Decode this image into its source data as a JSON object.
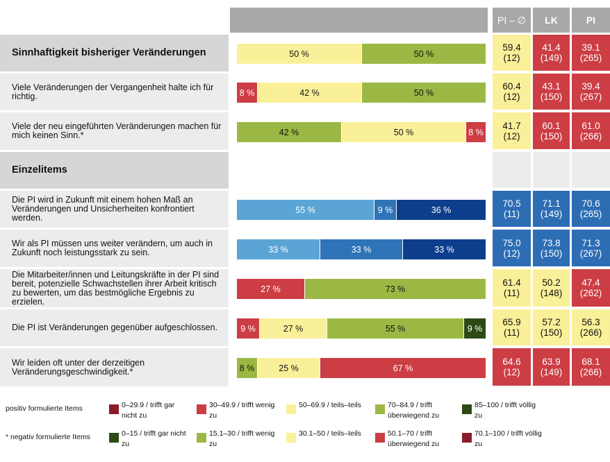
{
  "header": {
    "col_pi_avg": "PI – ∅",
    "col_lk": "LK",
    "col_pi": "PI"
  },
  "colors": {
    "header_gray": "#a8a8a8",
    "row_light": "#ececec",
    "row_section": "#d6d6d6",
    "pos_0": "#8b1a2b",
    "pos_1": "#cc3d44",
    "pos_2": "#fbf09a",
    "pos_3": "#9cb844",
    "pos_4": "#2d4a14",
    "neg_0": "#2d4a14",
    "neg_1": "#9cb844",
    "neg_2": "#fbf09a",
    "neg_3": "#cc3d44",
    "neg_4": "#8b1a2b",
    "blue_0": "#5ba5d6",
    "blue_1": "#2f74b8",
    "blue_2": "#0d3e8c",
    "score_yellow": "#fbf09a",
    "score_red": "#cc3d44",
    "score_blue": "#2d6db4",
    "score_empty": "#ececec"
  },
  "chart_data": {
    "type": "bar",
    "stacked": true,
    "orientation": "horizontal",
    "rows": [
      {
        "label": "Sinnhaftigkeit bisheriger Veränderungen",
        "section": true,
        "segments": [
          {
            "value": 50,
            "label": "50 %",
            "color": "#fbf09a"
          },
          {
            "value": 50,
            "label": "50 %",
            "color": "#9cb844"
          }
        ],
        "scores": [
          {
            "value": "59.4",
            "n": "(12)",
            "color": "#fbf09a"
          },
          {
            "value": "41.4",
            "n": "(149)",
            "color": "#cc3d44"
          },
          {
            "value": "39.1",
            "n": "(265)",
            "color": "#cc3d44"
          }
        ]
      },
      {
        "label": "Viele Veränderungen der Vergangenheit halte ich für richtig.",
        "section": false,
        "segments": [
          {
            "value": 8,
            "label": "8 %",
            "color": "#cc3d44"
          },
          {
            "value": 42,
            "label": "42 %",
            "color": "#fbf09a"
          },
          {
            "value": 50,
            "label": "50 %",
            "color": "#9cb844"
          }
        ],
        "scores": [
          {
            "value": "60.4",
            "n": "(12)",
            "color": "#fbf09a"
          },
          {
            "value": "43.1",
            "n": "(150)",
            "color": "#cc3d44"
          },
          {
            "value": "39.4",
            "n": "(267)",
            "color": "#cc3d44"
          }
        ]
      },
      {
        "label": "Viele der neu eingeführten Veränderungen machen für mich keinen Sinn.*",
        "section": false,
        "segments": [
          {
            "value": 42,
            "label": "42 %",
            "color": "#9cb844"
          },
          {
            "value": 50,
            "label": "50 %",
            "color": "#fbf09a"
          },
          {
            "value": 8,
            "label": "8 %",
            "color": "#cc3d44"
          }
        ],
        "scores": [
          {
            "value": "41.7",
            "n": "(12)",
            "color": "#fbf09a"
          },
          {
            "value": "60.1",
            "n": "(150)",
            "color": "#cc3d44"
          },
          {
            "value": "61.0",
            "n": "(266)",
            "color": "#cc3d44"
          }
        ]
      },
      {
        "label": "Einzelitems",
        "section": true,
        "segments": [],
        "scores": [
          {
            "value": "",
            "n": "",
            "color": "#ececec"
          },
          {
            "value": "",
            "n": "",
            "color": "#ececec"
          },
          {
            "value": "",
            "n": "",
            "color": "#ececec"
          }
        ]
      },
      {
        "label": "Die PI wird in Zukunft mit einem hohen Maß an Veränderungen und Unsicherheiten konfrontiert werden.",
        "section": false,
        "segments": [
          {
            "value": 55,
            "label": "55 %",
            "color": "#5ba5d6"
          },
          {
            "value": 9,
            "label": "9 %",
            "color": "#2f74b8"
          },
          {
            "value": 36,
            "label": "36 %",
            "color": "#0d3e8c"
          }
        ],
        "scores": [
          {
            "value": "70.5",
            "n": "(11)",
            "color": "#2d6db4"
          },
          {
            "value": "71.1",
            "n": "(149)",
            "color": "#2d6db4"
          },
          {
            "value": "70.6",
            "n": "(265)",
            "color": "#2d6db4"
          }
        ]
      },
      {
        "label": "Wir als PI müssen uns weiter verändern, um auch in Zukunft noch leistungsstark zu sein.",
        "section": false,
        "segments": [
          {
            "value": 33,
            "label": "33 %",
            "color": "#5ba5d6"
          },
          {
            "value": 33,
            "label": "33 %",
            "color": "#2f74b8"
          },
          {
            "value": 33,
            "label": "33 %",
            "color": "#0d3e8c"
          }
        ],
        "scores": [
          {
            "value": "75.0",
            "n": "(12)",
            "color": "#2d6db4"
          },
          {
            "value": "73.8",
            "n": "(150)",
            "color": "#2d6db4"
          },
          {
            "value": "71.3",
            "n": "(267)",
            "color": "#2d6db4"
          }
        ]
      },
      {
        "label": "Die Mitarbeiter/innen und Leitungskräfte in der PI sind bereit, potenzielle Schwachstellen ihrer Arbeit kritisch zu bewerten, um das bestmögliche Ergebnis zu erzielen.",
        "section": false,
        "segments": [
          {
            "value": 27,
            "label": "27 %",
            "color": "#cc3d44"
          },
          {
            "value": 73,
            "label": "73 %",
            "color": "#9cb844"
          }
        ],
        "scores": [
          {
            "value": "61.4",
            "n": "(11)",
            "color": "#fbf09a"
          },
          {
            "value": "50.2",
            "n": "(148)",
            "color": "#fbf09a"
          },
          {
            "value": "47.4",
            "n": "(262)",
            "color": "#cc3d44"
          }
        ]
      },
      {
        "label": "Die PI ist Veränderungen gegenüber aufgeschlossen.",
        "section": false,
        "segments": [
          {
            "value": 9,
            "label": "9 %",
            "color": "#cc3d44"
          },
          {
            "value": 27,
            "label": "27 %",
            "color": "#fbf09a"
          },
          {
            "value": 55,
            "label": "55 %",
            "color": "#9cb844"
          },
          {
            "value": 9,
            "label": "9 %",
            "color": "#2d4a14"
          }
        ],
        "scores": [
          {
            "value": "65.9",
            "n": "(11)",
            "color": "#fbf09a"
          },
          {
            "value": "57.2",
            "n": "(150)",
            "color": "#fbf09a"
          },
          {
            "value": "56.3",
            "n": "(266)",
            "color": "#fbf09a"
          }
        ]
      },
      {
        "label": "Wir leiden oft unter der derzeitigen Veränderungsgeschwindigkeit.*",
        "section": false,
        "segments": [
          {
            "value": 8,
            "label": "8 %",
            "color": "#9cb844"
          },
          {
            "value": 25,
            "label": "25 %",
            "color": "#fbf09a"
          },
          {
            "value": 67,
            "label": "67 %",
            "color": "#cc3d44"
          }
        ],
        "scores": [
          {
            "value": "64.6",
            "n": "(12)",
            "color": "#cc3d44"
          },
          {
            "value": "63.9",
            "n": "(149)",
            "color": "#cc3d44"
          },
          {
            "value": "68.1",
            "n": "(266)",
            "color": "#cc3d44"
          }
        ]
      }
    ]
  },
  "legend": {
    "positive_title": "positiv formulierte Items",
    "negative_title": "* negativ formulierte Items",
    "positive": [
      {
        "text": "0–29.9 / trifft gar nicht zu",
        "color": "#8b1a2b"
      },
      {
        "text": "30–49.9 / trifft wenig zu",
        "color": "#cc3d44"
      },
      {
        "text": "50–69.9 / teils–teils",
        "color": "#fbf09a"
      },
      {
        "text": "70–84.9 / trifft überwiegend zu",
        "color": "#9cb844"
      },
      {
        "text": "85–100 / trifft völlig zu",
        "color": "#2d4a14"
      }
    ],
    "negative": [
      {
        "text": "0–15 / trifft gar nicht zu",
        "color": "#2d4a14"
      },
      {
        "text": "15.1–30 / trifft wenig zu",
        "color": "#9cb844"
      },
      {
        "text": "30.1–50 / teils–teils",
        "color": "#fbf09a"
      },
      {
        "text": "50.1–70 / trifft überwiegend zu",
        "color": "#cc3d44"
      },
      {
        "text": "70.1–100 / trifft völlig zu",
        "color": "#8b1a2b"
      }
    ]
  }
}
